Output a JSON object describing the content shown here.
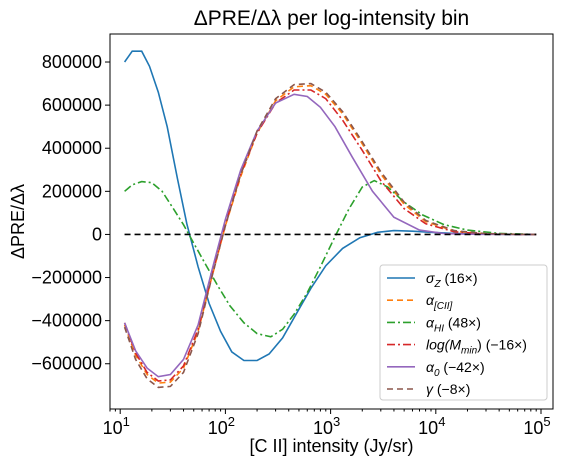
{
  "chart_data": {
    "type": "line",
    "title": "ΔPRE/Δλ per log-intensity bin",
    "xlabel": "[C II] intensity (Jy/sr)",
    "ylabel": "ΔPRE/Δλ",
    "xscale": "log",
    "xlim": [
      8,
      130000
    ],
    "ylim": [
      -810000,
      930000
    ],
    "grid": false,
    "legend_position": "lower right",
    "x_ticks": [
      {
        "value": 10,
        "base": "10",
        "exp": "1"
      },
      {
        "value": 100,
        "base": "10",
        "exp": "2"
      },
      {
        "value": 1000,
        "base": "10",
        "exp": "3"
      },
      {
        "value": 10000,
        "base": "10",
        "exp": "4"
      },
      {
        "value": 100000,
        "base": "10",
        "exp": "5"
      }
    ],
    "y_ticks": [
      {
        "value": -600000,
        "label": "−600000"
      },
      {
        "value": -400000,
        "label": "−400000"
      },
      {
        "value": -200000,
        "label": "−200000"
      },
      {
        "value": 0,
        "label": "0"
      },
      {
        "value": 200000,
        "label": "200000"
      },
      {
        "value": 400000,
        "label": "400000"
      },
      {
        "value": 600000,
        "label": "600000"
      },
      {
        "value": 800000,
        "label": "800000"
      }
    ],
    "reference_line": {
      "y": 0,
      "x_from": 11,
      "x_to": 90000,
      "color": "#000000",
      "dash": "6,4"
    },
    "series": [
      {
        "name": "σ_Z (16×)",
        "legend": {
          "main": "σ",
          "sub": "Z",
          "rest": " (16×)"
        },
        "color": "#1f77b4",
        "dash": "",
        "x": [
          11,
          13,
          16,
          19,
          23,
          28,
          35,
          43,
          55,
          70,
          90,
          115,
          150,
          200,
          260,
          350,
          470,
          650,
          900,
          1300,
          1900,
          2800,
          4000,
          6000,
          9000,
          15000,
          25000,
          45000,
          90000
        ],
        "y": [
          800000,
          850000,
          850000,
          780000,
          660000,
          500000,
          260000,
          50000,
          -150000,
          -320000,
          -450000,
          -545000,
          -585000,
          -585000,
          -555000,
          -480000,
          -370000,
          -250000,
          -145000,
          -65000,
          -15000,
          10000,
          18000,
          15000,
          10000,
          5000,
          2000,
          500,
          0
        ]
      },
      {
        "name": "α_[CII]",
        "legend": {
          "main": "α",
          "sub": "[CII]",
          "rest": ""
        },
        "color": "#ff7f0e",
        "dash": "6,4",
        "x": [
          11,
          14,
          18,
          23,
          30,
          40,
          55,
          75,
          100,
          140,
          200,
          300,
          450,
          650,
          900,
          1300,
          2000,
          3000,
          5000,
          8000,
          15000,
          30000,
          60000,
          90000
        ],
        "y": [
          -420000,
          -560000,
          -650000,
          -690000,
          -685000,
          -620000,
          -450000,
          -190000,
          40000,
          270000,
          470000,
          620000,
          685000,
          690000,
          650000,
          560000,
          420000,
          280000,
          140000,
          60000,
          15000,
          3000,
          500,
          0
        ]
      },
      {
        "name": "α_HI (48×)",
        "legend": {
          "main": "α",
          "sub": "HI",
          "rest": " (48×)"
        },
        "color": "#2ca02c",
        "dash": "8,3,2,3",
        "x": [
          11,
          13,
          16,
          20,
          25,
          32,
          40,
          50,
          65,
          85,
          110,
          150,
          200,
          270,
          350,
          450,
          600,
          800,
          1100,
          1500,
          2000,
          2600,
          3500,
          5000,
          7500,
          12000,
          20000,
          40000,
          90000
        ],
        "y": [
          200000,
          230000,
          245000,
          240000,
          200000,
          120000,
          45000,
          -40000,
          -140000,
          -240000,
          -330000,
          -410000,
          -460000,
          -475000,
          -440000,
          -370000,
          -270000,
          -150000,
          -10000,
          120000,
          220000,
          250000,
          220000,
          150000,
          90000,
          45000,
          20000,
          5000,
          0
        ]
      },
      {
        "name": "log(M_min) (−16×)",
        "legend": {
          "main": "log(M",
          "sub": "min",
          "rest": ") (−16×)"
        },
        "color": "#d62728",
        "dash": "8,3,2,3",
        "x": [
          11,
          14,
          18,
          23,
          30,
          40,
          55,
          75,
          100,
          140,
          200,
          300,
          450,
          650,
          900,
          1300,
          2000,
          3000,
          5000,
          8000,
          15000,
          30000,
          60000,
          90000
        ],
        "y": [
          -410000,
          -550000,
          -640000,
          -680000,
          -675000,
          -610000,
          -440000,
          -180000,
          50000,
          280000,
          470000,
          610000,
          670000,
          670000,
          630000,
          530000,
          390000,
          250000,
          120000,
          50000,
          12000,
          2000,
          300,
          0
        ]
      },
      {
        "name": "α_0 (−42×)",
        "legend": {
          "main": "α",
          "sub": "0",
          "rest": " (−42×)"
        },
        "color": "#9467bd",
        "dash": "",
        "x": [
          11,
          14,
          18,
          23,
          30,
          40,
          55,
          75,
          100,
          140,
          200,
          300,
          450,
          600,
          800,
          1100,
          1600,
          2500,
          4000,
          7000,
          12000,
          25000,
          50000,
          90000
        ],
        "y": [
          -410000,
          -540000,
          -620000,
          -660000,
          -650000,
          -580000,
          -420000,
          -160000,
          70000,
          300000,
          480000,
          610000,
          650000,
          640000,
          590000,
          500000,
          360000,
          200000,
          80000,
          20000,
          4000,
          500,
          100,
          0
        ]
      },
      {
        "name": "γ (−8×)",
        "legend": {
          "main": "γ",
          "sub": "",
          "rest": " (−8×)"
        },
        "color": "#8c564b",
        "dash": "6,4",
        "x": [
          11,
          14,
          18,
          23,
          30,
          40,
          55,
          75,
          100,
          140,
          200,
          300,
          450,
          650,
          900,
          1300,
          2000,
          3000,
          5000,
          8000,
          15000,
          30000,
          60000,
          90000
        ],
        "y": [
          -430000,
          -580000,
          -670000,
          -710000,
          -705000,
          -640000,
          -460000,
          -190000,
          40000,
          280000,
          480000,
          630000,
          695000,
          700000,
          660000,
          570000,
          430000,
          290000,
          150000,
          65000,
          18000,
          4000,
          600,
          0
        ]
      }
    ]
  }
}
